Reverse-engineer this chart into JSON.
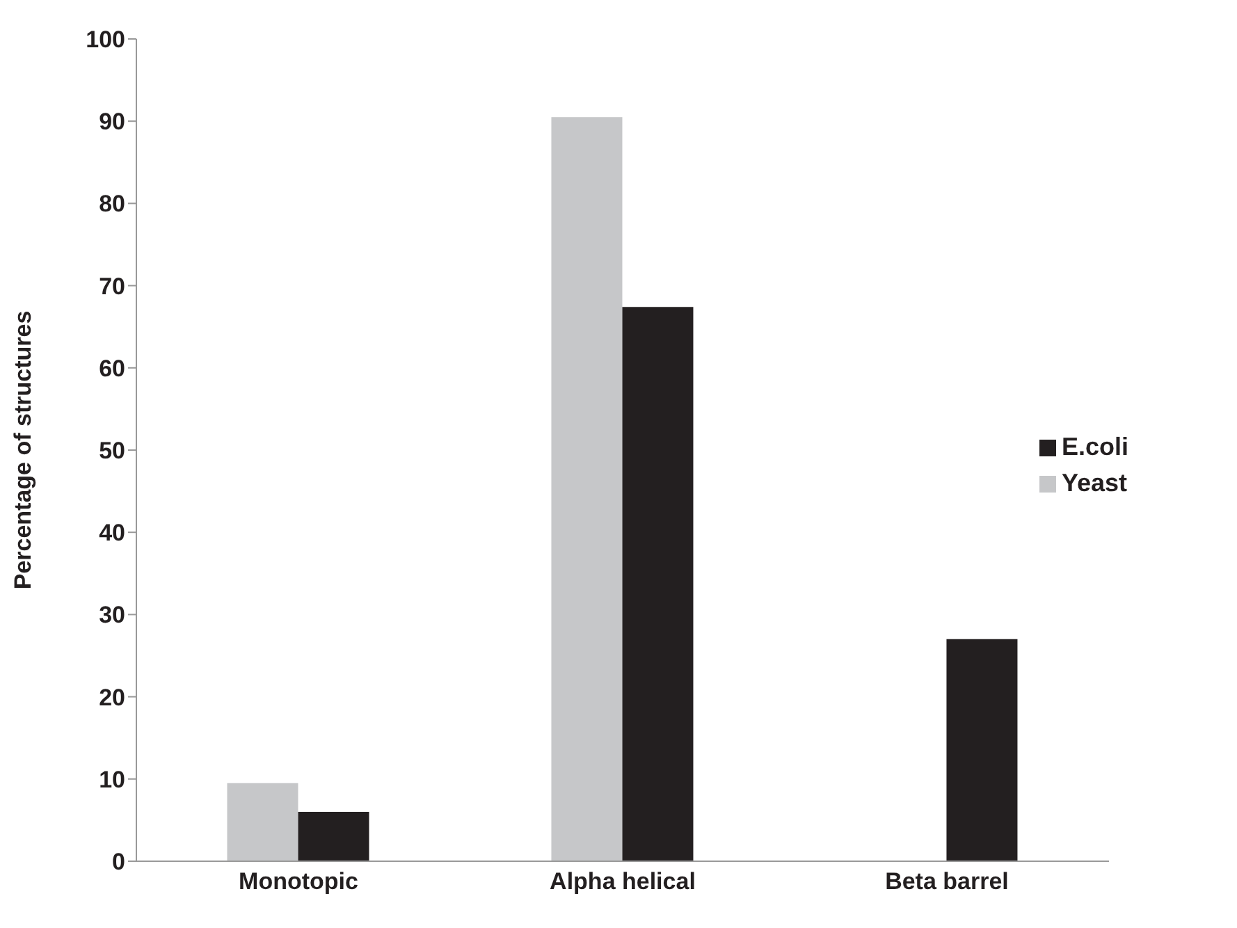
{
  "chart_data": {
    "type": "bar",
    "ylabel": "Percentage of structures",
    "categories": [
      "Monotopic",
      "Alpha helical",
      "Beta barrel"
    ],
    "series": [
      {
        "name": "Yeast",
        "color": "#c6c7c9",
        "values": [
          9.5,
          90.5,
          null
        ]
      },
      {
        "name": "E.coli",
        "color": "#231f20",
        "values": [
          6,
          67.4,
          27
        ]
      }
    ],
    "ylim": [
      0,
      100
    ],
    "yticks": [
      0,
      10,
      20,
      30,
      40,
      50,
      60,
      70,
      80,
      90,
      100
    ],
    "grid": false,
    "legend": "right"
  }
}
